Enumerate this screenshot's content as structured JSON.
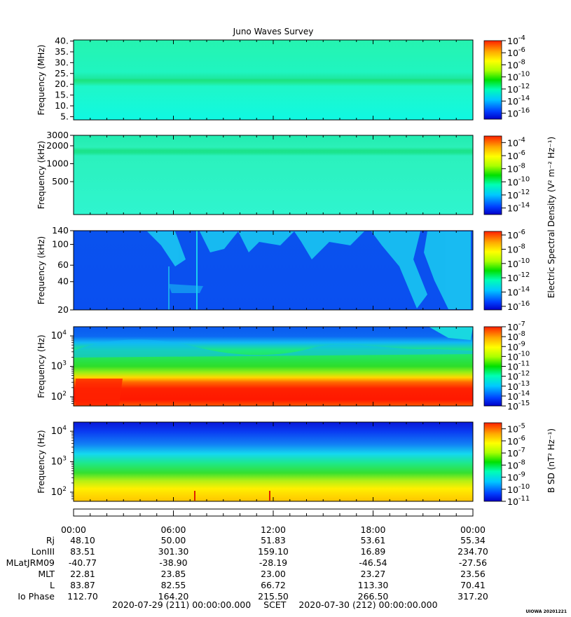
{
  "title": "Juno Waves Survey",
  "footer": {
    "start": "2020-07-29 (211) 00:00:00.000",
    "scet": "SCET",
    "end": "2020-07-30 (212) 00:00:00.000",
    "stamp": "UIOWA 20201221"
  },
  "colorbar_labels": {
    "electric": "Electric Spectral Density (V² m⁻² Hz⁻¹)",
    "magnetic": "B SD (nT² Hz⁻¹)"
  },
  "colors": {
    "colormap": [
      "#0000c8",
      "#0040ff",
      "#00c8ff",
      "#00ffb4",
      "#00e000",
      "#aaff00",
      "#ffff00",
      "#ffaa00",
      "#ff2000"
    ]
  },
  "ephemeris": {
    "times": [
      "00:00",
      "06:00",
      "12:00",
      "18:00",
      "00:00"
    ],
    "rows": [
      {
        "label": "Rj",
        "values": [
          "48.10",
          "50.00",
          "51.83",
          "53.61",
          "55.34"
        ]
      },
      {
        "label": "LonIII",
        "values": [
          "83.51",
          "301.30",
          "159.10",
          "16.89",
          "234.70"
        ]
      },
      {
        "label": "MLatJRM09",
        "values": [
          "-40.77",
          "-38.90",
          "-28.19",
          "-46.54",
          "-27.56"
        ]
      },
      {
        "label": "MLT",
        "values": [
          "22.81",
          "23.85",
          "23.00",
          "23.27",
          "23.56"
        ]
      },
      {
        "label": "L",
        "values": [
          "83.87",
          "82.55",
          "66.72",
          "113.30",
          "70.41"
        ]
      },
      {
        "label": "Io Phase",
        "values": [
          "112.70",
          "164.20",
          "215.50",
          "266.50",
          "317.20"
        ]
      }
    ]
  },
  "chart_data": [
    {
      "type": "heatmap",
      "ylabel": "Frequency (MHz)",
      "yscale": "linear",
      "ylim": [
        3.5,
        40.5
      ],
      "yticks": [
        "5.",
        "10.",
        "15.",
        "20.",
        "25.",
        "30.",
        "35.",
        "40."
      ],
      "yticks_values": [
        5,
        10,
        15,
        20,
        25,
        30,
        35,
        40
      ],
      "colorbar_ticks": [
        "-4",
        "-6",
        "-8",
        "-10",
        "-12",
        "-14",
        "-16"
      ],
      "colorbar_range": [
        -17,
        -4
      ]
    },
    {
      "type": "heatmap",
      "ylabel": "Frequency (kHz)",
      "yscale": "log",
      "ylim": [
        140,
        3000
      ],
      "yticks": [
        "500",
        "1000",
        "2000",
        "3000"
      ],
      "yticks_values": [
        500,
        1000,
        2000,
        3000
      ],
      "colorbar_ticks": [
        "-4",
        "-6",
        "-8",
        "-10",
        "-12",
        "-14"
      ],
      "colorbar_range": [
        -15,
        -3
      ]
    },
    {
      "type": "heatmap",
      "ylabel": "Frequency (kHz)",
      "yscale": "log",
      "ylim": [
        20,
        140
      ],
      "yticks": [
        "20",
        "40",
        "60",
        "100",
        "140"
      ],
      "yticks_values": [
        20,
        40,
        60,
        100,
        140
      ],
      "colorbar_ticks": [
        "-6",
        "-8",
        "-10",
        "-12",
        "-14",
        "-16"
      ],
      "colorbar_range": [
        -16.5,
        -5.5
      ]
    },
    {
      "type": "heatmap",
      "ylabel": "Frequency (Hz)",
      "yscale": "log",
      "ylim": [
        50,
        20000
      ],
      "yticks": [
        "2",
        "3",
        "4"
      ],
      "yticks_values": [
        100,
        1000,
        10000
      ],
      "colorbar_ticks": [
        "-7",
        "-8",
        "-9",
        "-10",
        "-11",
        "-12",
        "-13",
        "-14",
        "-15"
      ],
      "colorbar_range": [
        -15,
        -7
      ]
    },
    {
      "type": "heatmap",
      "ylabel": "Frequency (Hz)",
      "yscale": "log",
      "ylim": [
        50,
        20000
      ],
      "yticks": [
        "2",
        "3",
        "4"
      ],
      "yticks_values": [
        100,
        1000,
        10000
      ],
      "colorbar_ticks": [
        "-5",
        "-6",
        "-7",
        "-8",
        "-9",
        "-10",
        "-11"
      ],
      "colorbar_range": [
        -11,
        -4.5
      ]
    }
  ]
}
